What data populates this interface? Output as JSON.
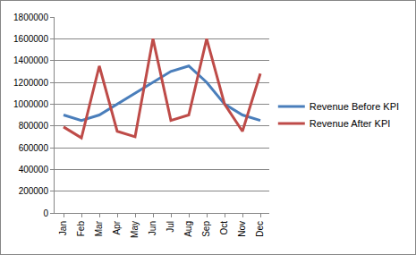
{
  "chart_data": {
    "type": "line",
    "categories": [
      "Jan",
      "Feb",
      "Mar",
      "Apr",
      "May",
      "Jun",
      "Jul",
      "Aug",
      "Sep",
      "Oct",
      "Nov",
      "Dec"
    ],
    "series": [
      {
        "name": "Revenue Before KPI",
        "color": "#4a7ebb",
        "values": [
          900000,
          850000,
          900000,
          1000000,
          1100000,
          1200000,
          1300000,
          1350000,
          1200000,
          1000000,
          900000,
          850000
        ]
      },
      {
        "name": "Revenue After KPI",
        "color": "#be4b48",
        "values": [
          790000,
          690000,
          1350000,
          750000,
          700000,
          1600000,
          850000,
          900000,
          1600000,
          1000000,
          750000,
          1280000
        ]
      }
    ],
    "ylim": [
      0,
      1800000
    ],
    "yticks": [
      0,
      200000,
      400000,
      600000,
      800000,
      1000000,
      1200000,
      1400000,
      1600000,
      1800000
    ],
    "grid": true,
    "legend": "right"
  }
}
